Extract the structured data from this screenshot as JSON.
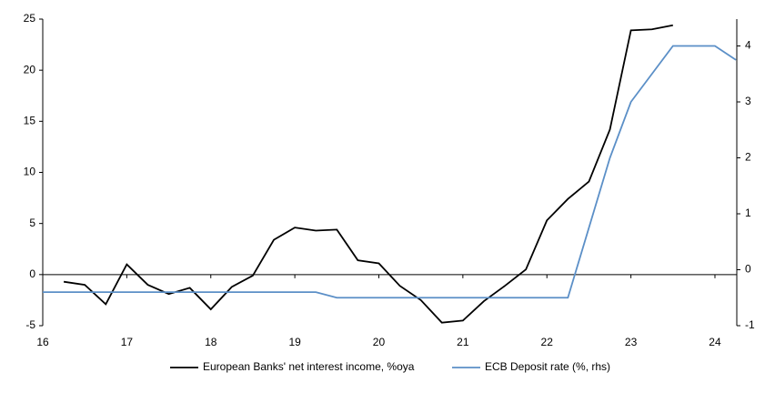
{
  "chart_data": {
    "type": "line",
    "x": [
      16,
      16.25,
      16.5,
      16.75,
      17,
      17.25,
      17.5,
      17.75,
      18,
      18.25,
      18.5,
      18.75,
      19,
      19.25,
      19.5,
      19.75,
      20,
      20.25,
      20.5,
      20.75,
      21,
      21.25,
      21.5,
      21.75,
      22,
      22.25,
      22.5,
      22.75,
      23,
      23.25,
      23.5,
      23.75,
      24,
      24.25
    ],
    "series": [
      {
        "name": "European Banks' net interest income, %oya",
        "color": "#000000",
        "values": [
          null,
          -0.7,
          -1.0,
          -2.9,
          1.0,
          -1.0,
          -1.9,
          -1.3,
          -3.4,
          -1.2,
          -0.1,
          3.4,
          4.6,
          4.3,
          4.4,
          1.4,
          1.1,
          -1.1,
          -2.5,
          -4.7,
          -4.5,
          -2.6,
          -1.1,
          0.5,
          5.3,
          7.4,
          9.1,
          14.2,
          23.9,
          24.0,
          24.4,
          null,
          null,
          null
        ]
      },
      {
        "name": "ECB Deposit rate (%, rhs)",
        "color": "#5b8fc7",
        "axis": "y2",
        "values": [
          -0.4,
          -0.4,
          -0.4,
          -0.4,
          -0.4,
          -0.4,
          -0.4,
          -0.4,
          -0.4,
          -0.4,
          -0.4,
          -0.4,
          -0.4,
          -0.4,
          -0.5,
          -0.5,
          -0.5,
          -0.5,
          -0.5,
          -0.5,
          -0.5,
          -0.5,
          -0.5,
          -0.5,
          -0.5,
          -0.5,
          0.75,
          2.0,
          3.0,
          3.5,
          4.0,
          4.0,
          4.0,
          3.75
        ]
      }
    ],
    "xlim": [
      16,
      24.26
    ],
    "xticks": [
      16,
      17,
      18,
      19,
      20,
      21,
      22,
      23,
      24
    ],
    "ylim": [
      -5,
      25
    ],
    "yticks": [
      -5,
      0,
      5,
      10,
      15,
      20,
      25
    ],
    "y2lim": [
      -1,
      4.48
    ],
    "y2ticks": [
      -1,
      0,
      1,
      2,
      3,
      4
    ],
    "legend": "bottom"
  }
}
